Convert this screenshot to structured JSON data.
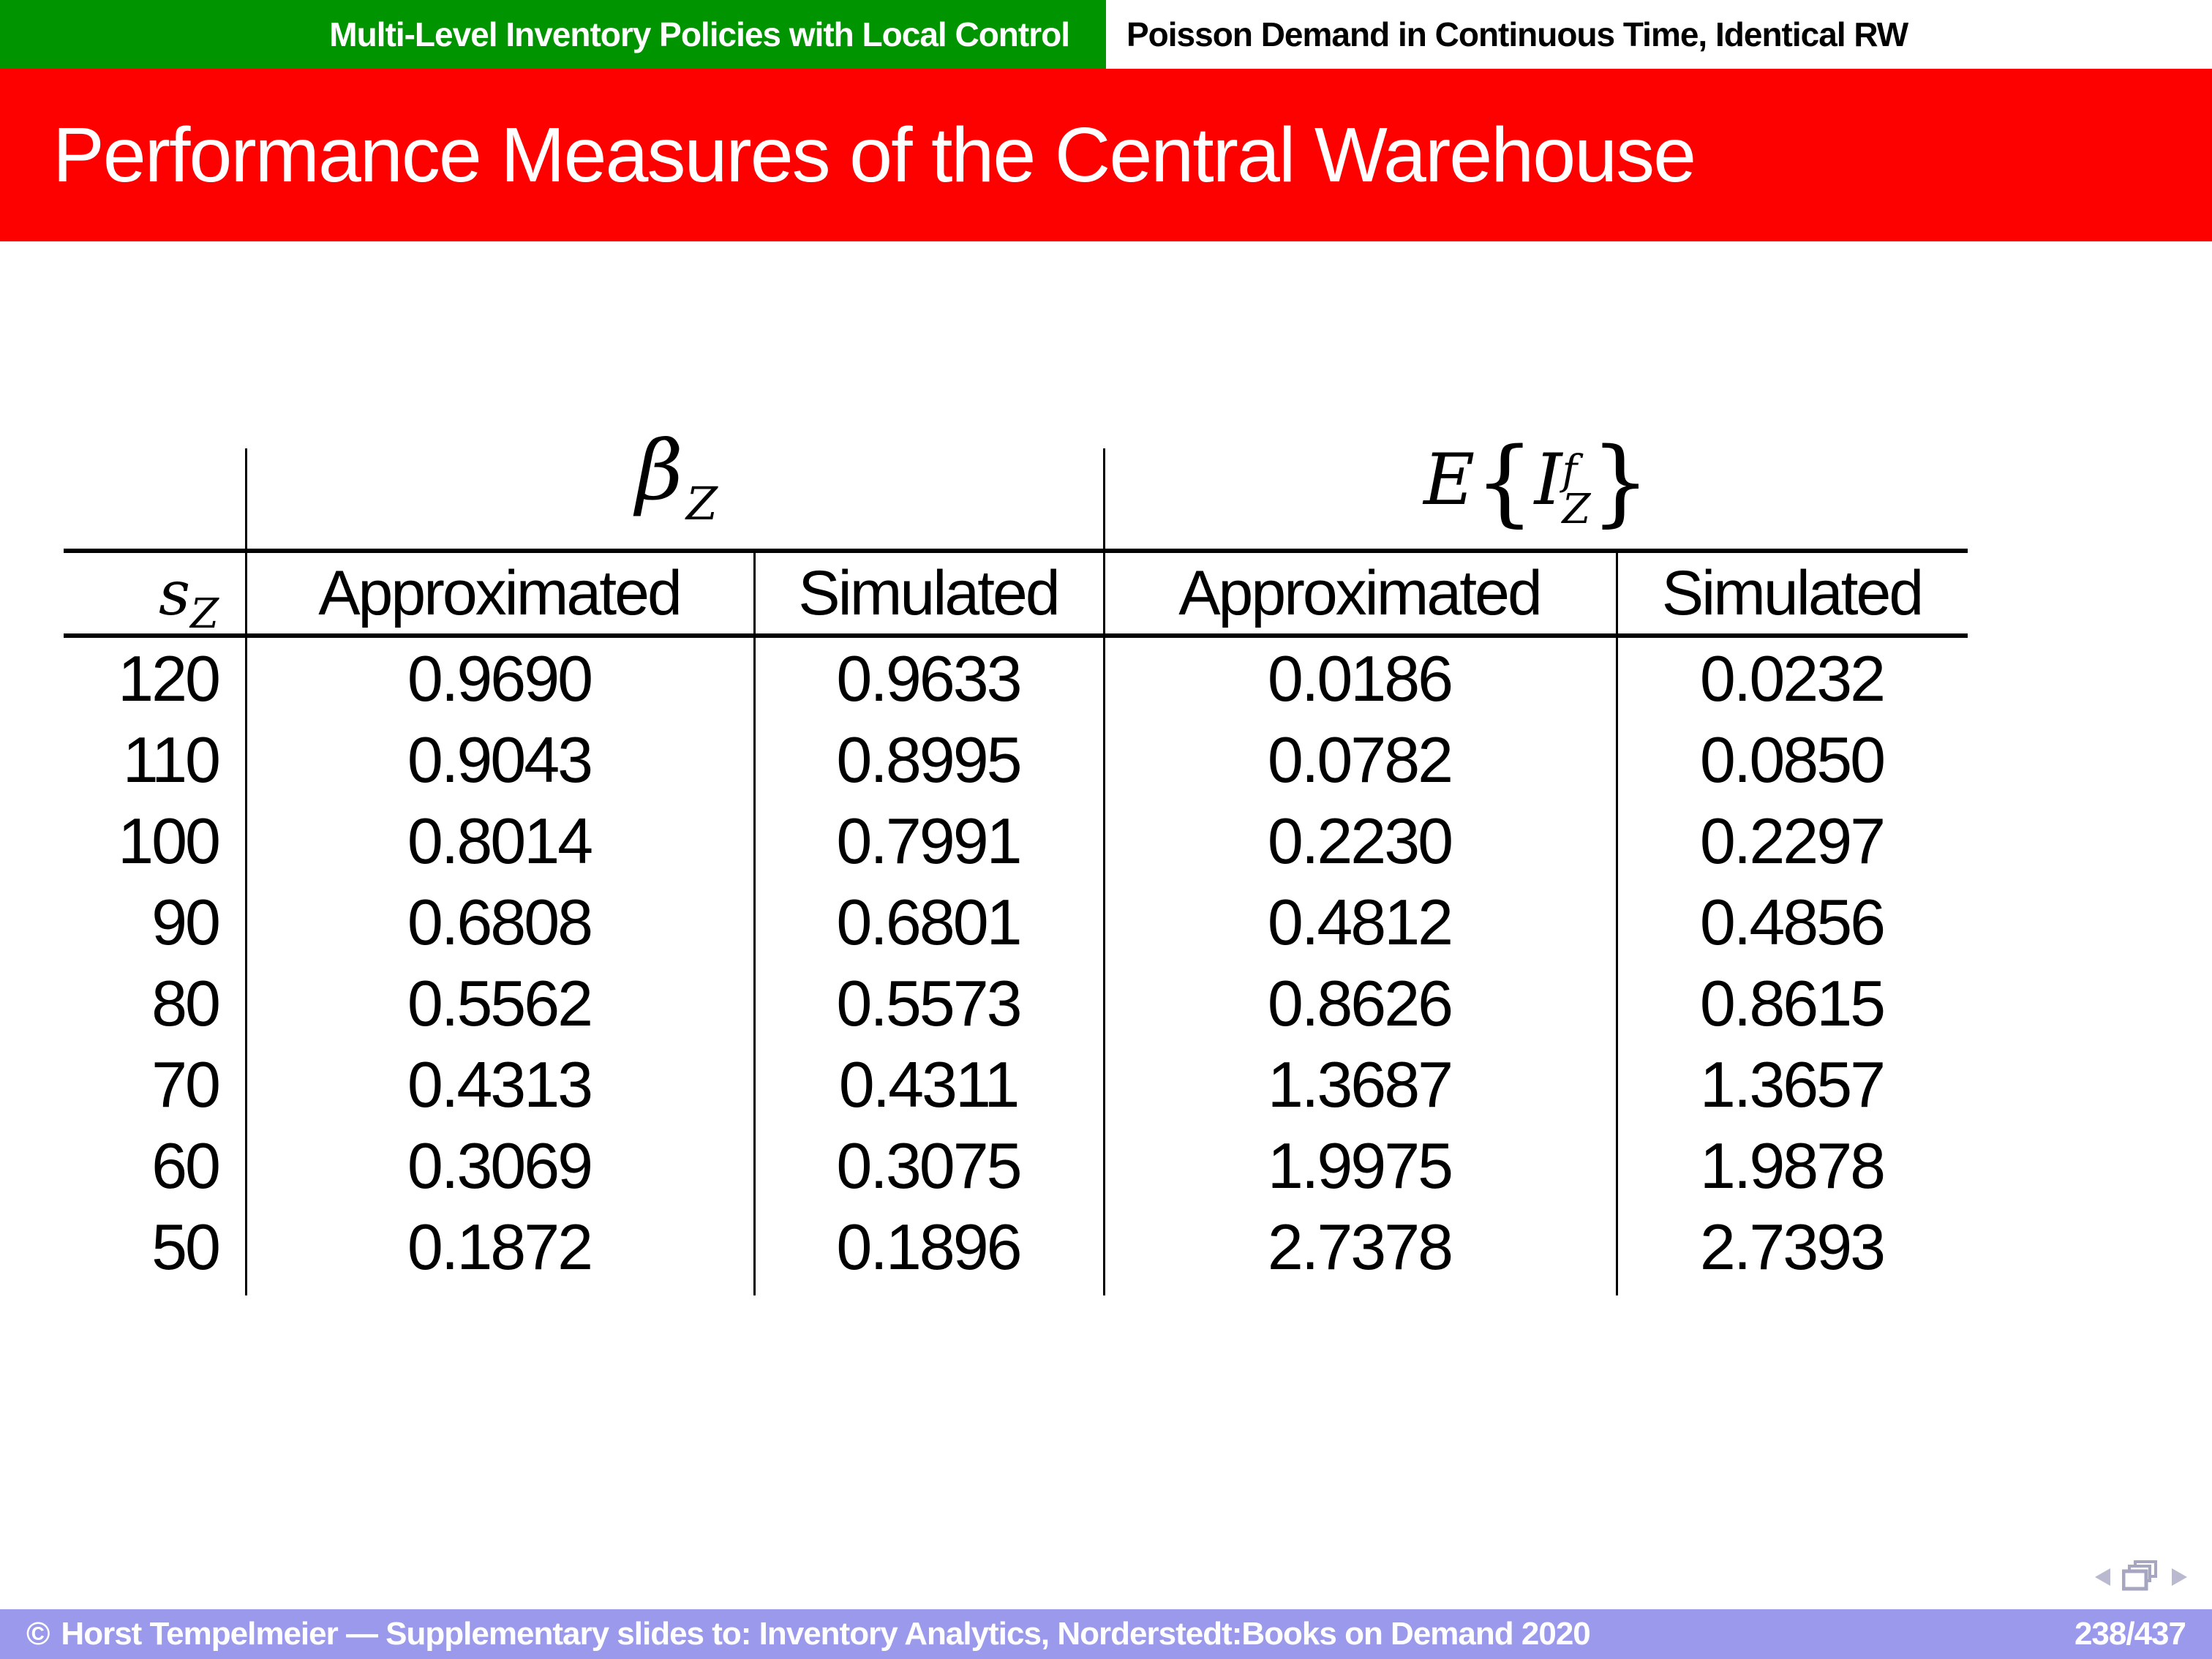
{
  "header": {
    "left_section": "Multi-Level Inventory Policies with Local Control",
    "right_section": "Poisson Demand in Continuous Time, Identical RW"
  },
  "title": "Performance Measures of the Central Warehouse",
  "table": {
    "row_header": {
      "base": "s",
      "sub": "Z"
    },
    "group_headers": [
      {
        "name": "beta-service-level",
        "base": "β",
        "sub": "Z"
      },
      {
        "name": "expected-inventory",
        "prefix": "E",
        "open_brace": "{",
        "base": "I",
        "sup": "f",
        "sub": "Z",
        "close_brace": "}"
      }
    ],
    "col_headers": [
      "Approximated",
      "Simulated",
      "Approximated",
      "Simulated"
    ],
    "rows": [
      [
        "120",
        "0.9690",
        "0.9633",
        "0.0186",
        "0.0232"
      ],
      [
        "110",
        "0.9043",
        "0.8995",
        "0.0782",
        "0.0850"
      ],
      [
        "100",
        "0.8014",
        "0.7991",
        "0.2230",
        "0.2297"
      ],
      [
        "90",
        "0.6808",
        "0.6801",
        "0.4812",
        "0.4856"
      ],
      [
        "80",
        "0.5562",
        "0.5573",
        "0.8626",
        "0.8615"
      ],
      [
        "70",
        "0.4313",
        "0.4311",
        "1.3687",
        "1.3657"
      ],
      [
        "60",
        "0.3069",
        "0.3075",
        "1.9975",
        "1.9878"
      ],
      [
        "50",
        "0.1872",
        "0.1896",
        "2.7378",
        "2.7393"
      ]
    ]
  },
  "navigation": {
    "icons": [
      "prev-arrow",
      "frames",
      "next-arrow"
    ]
  },
  "footer": {
    "copyright": "©",
    "text": "Horst Tempelmeier — Supplementary slides to: Inventory Analytics, Norderstedt:Books on Demand 2020",
    "page": "238/437"
  },
  "colors": {
    "header_green": "#009400",
    "title_red": "#FD0000",
    "footer_lavender": "#9A99EB",
    "nav_grey": "#B9B9CF"
  }
}
